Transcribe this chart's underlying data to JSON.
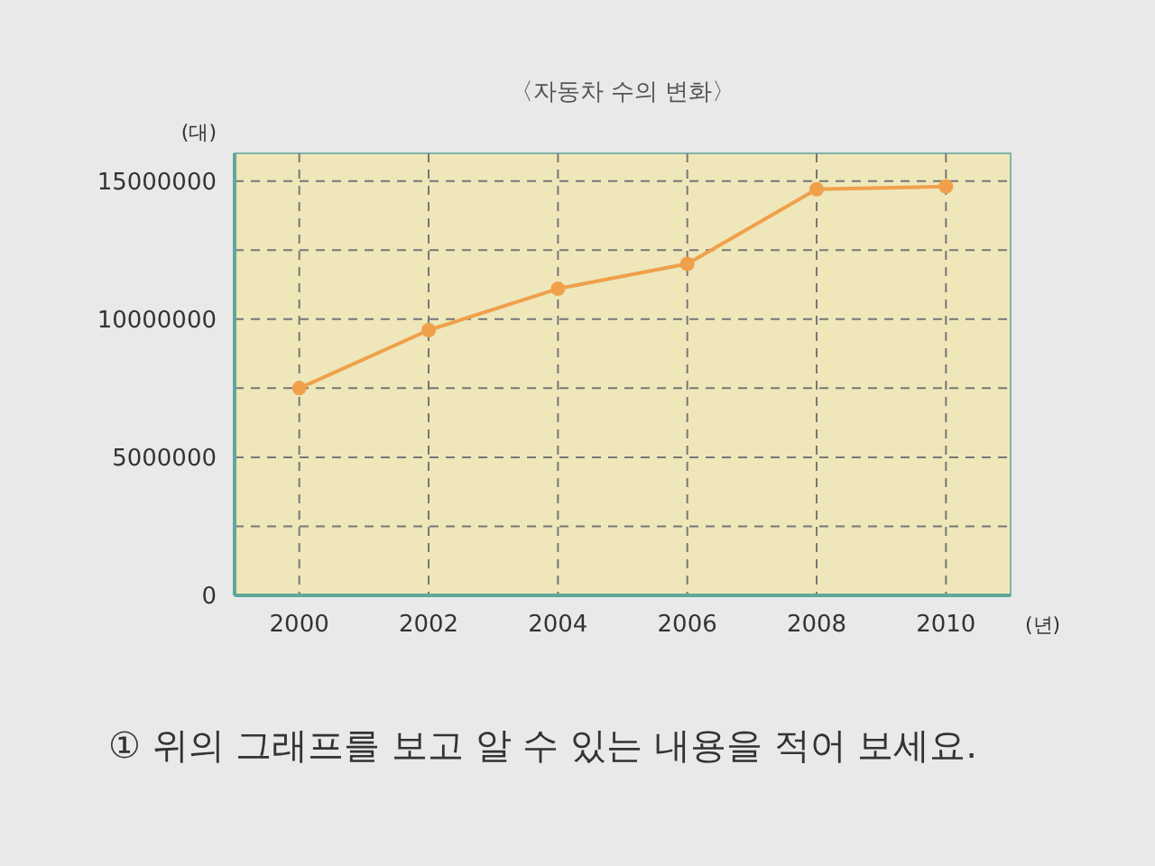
{
  "chart_data": {
    "type": "line",
    "title": "〈자동차 수의 변화〉",
    "xlabel": "(년)",
    "ylabel": "(대)",
    "x": [
      2000,
      2002,
      2004,
      2006,
      2008,
      2010
    ],
    "series": [
      {
        "color": "#f0a04b",
        "values": [
          7500000,
          9600000,
          11100000,
          12000000,
          14700000,
          14800000
        ]
      }
    ],
    "xlim": [
      1999,
      2011
    ],
    "xticks": [
      2000,
      2002,
      2004,
      2006,
      2008,
      2010
    ],
    "ylim": [
      0,
      16000000
    ],
    "yticks": [
      0,
      {
        "value": 2500000,
        "label": null
      },
      5000000,
      {
        "value": 7500000,
        "label": null
      },
      10000000,
      {
        "value": 12500000,
        "label": null
      },
      15000000
    ],
    "grid": true,
    "marker": "circle",
    "line_style": "solid",
    "annotations": [
      "① 위의 그래프를 보고 알 수 있는 내용을 적어 보세요."
    ]
  }
}
